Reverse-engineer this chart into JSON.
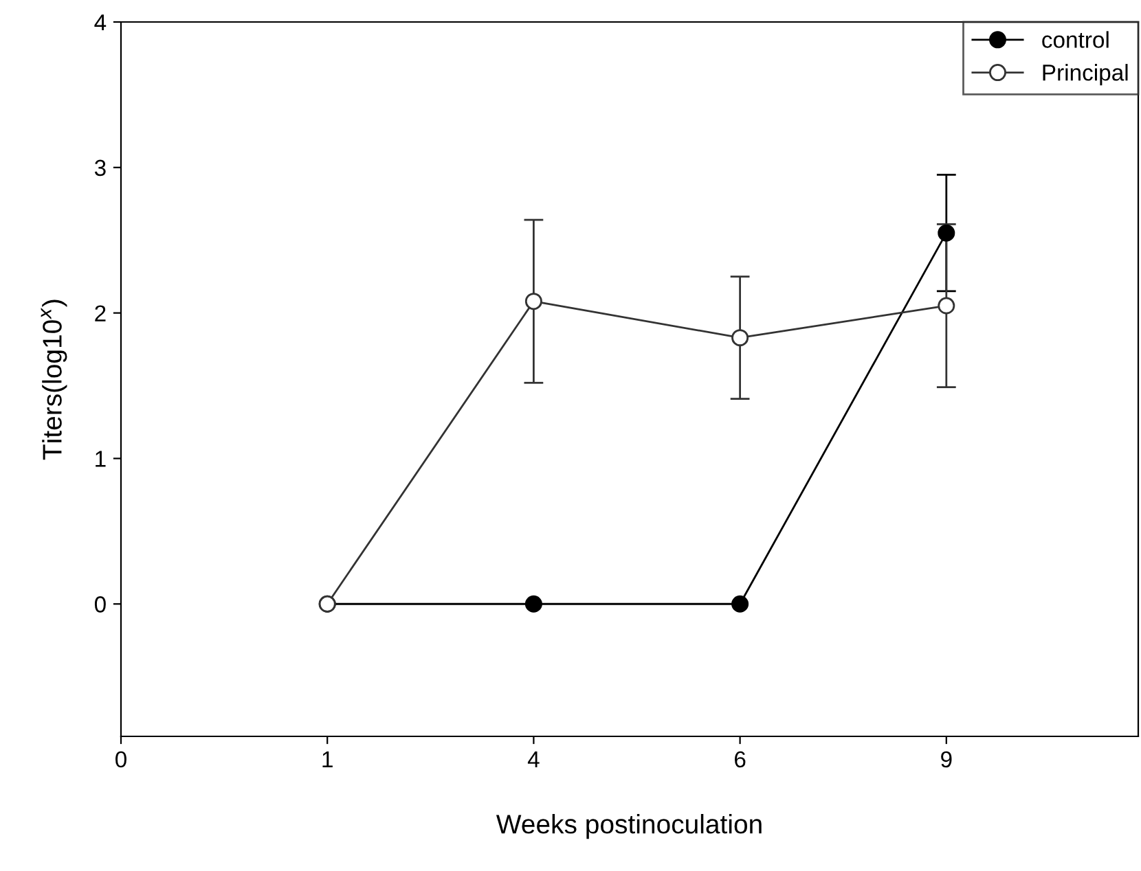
{
  "chart_data": {
    "type": "line",
    "xlabel": "Weeks postinoculation",
    "ylabel": "Titers(log10$^{x}$)",
    "categories": [
      "0",
      "1",
      "4",
      "6",
      "9"
    ],
    "ylim": [
      -0.91,
      4
    ],
    "yticks": [
      0,
      1,
      2,
      3,
      4
    ],
    "series": [
      {
        "name": "control",
        "color": "#000000",
        "values": [
          null,
          0,
          0,
          0,
          2.55
        ],
        "errors": [
          null,
          null,
          null,
          null,
          0.4
        ]
      },
      {
        "name": "Principal",
        "color": "#333333",
        "values": [
          null,
          0,
          2.08,
          1.83,
          2.05
        ],
        "errors": [
          null,
          null,
          0.56,
          0.42,
          0.56
        ]
      }
    ],
    "marker": "circle",
    "line_style": "solid",
    "legend": "top right",
    "grid": false
  }
}
